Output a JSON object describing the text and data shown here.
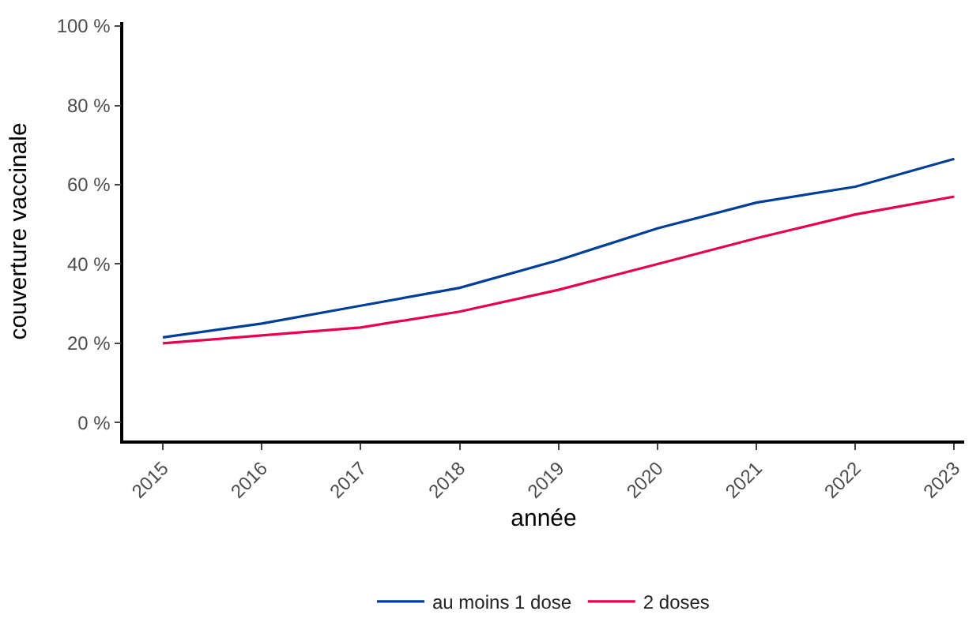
{
  "chart_data": {
    "type": "line",
    "xlabel": "année",
    "ylabel": "couverture vaccinale",
    "x": [
      2015,
      2016,
      2017,
      2018,
      2019,
      2020,
      2021,
      2022,
      2023
    ],
    "series": [
      {
        "name": "au moins 1 dose",
        "color": "#003f99",
        "values": [
          21.5,
          25,
          29.5,
          34,
          41,
          49,
          55.5,
          59.5,
          66.5
        ]
      },
      {
        "name": "2 doses",
        "color": "#e8004c",
        "values": [
          20,
          22,
          24,
          28,
          33.5,
          40,
          46.5,
          52.5,
          57
        ]
      }
    ],
    "xlim": [
      2014.6,
      2023.1
    ],
    "xticks": [
      2015,
      2016,
      2017,
      2018,
      2019,
      2020,
      2021,
      2022,
      2023
    ],
    "ylim": [
      -4.5,
      101
    ],
    "yticks": [
      {
        "value": 0,
        "label": "0 %"
      },
      {
        "value": 20,
        "label": "20 %"
      },
      {
        "value": 40,
        "label": "40 %"
      },
      {
        "value": 60,
        "label": "60 %"
      },
      {
        "value": 80,
        "label": "80 %"
      },
      {
        "value": 100,
        "label": "100 %"
      }
    ],
    "legend": "bottom",
    "marker": "none",
    "line_style": "solid"
  }
}
